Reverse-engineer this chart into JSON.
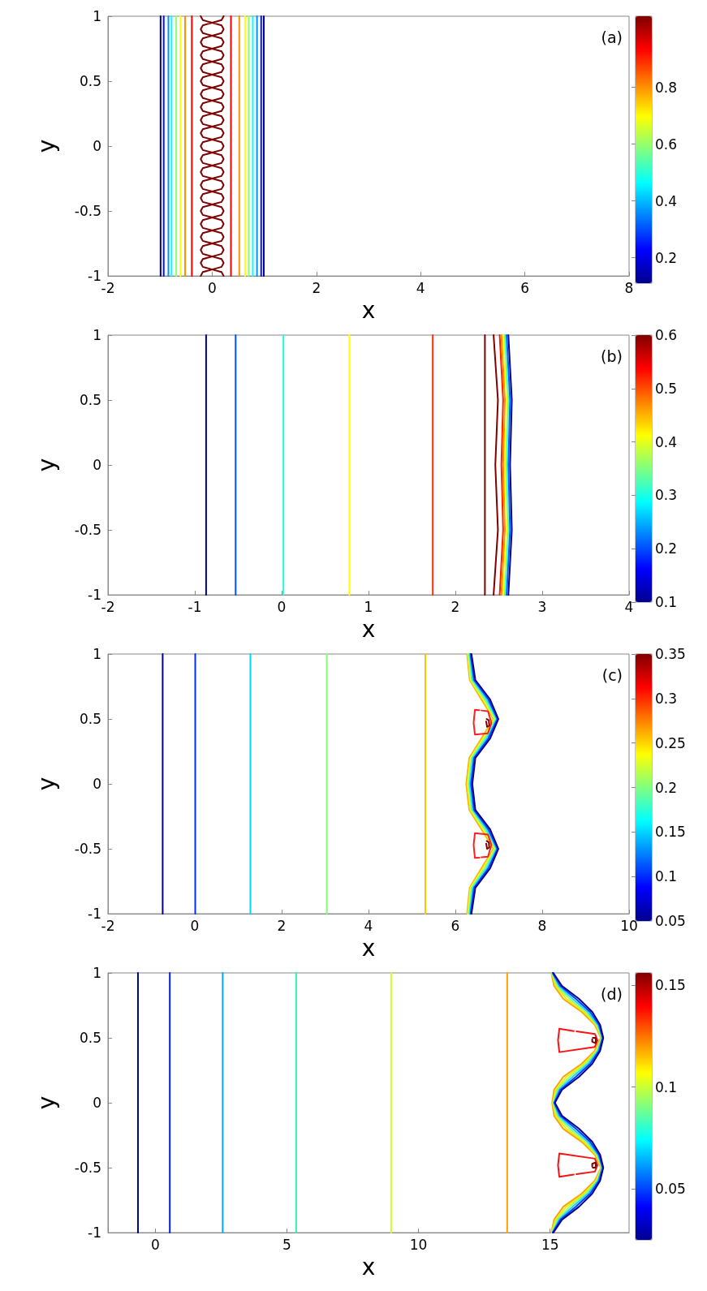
{
  "chart_data": [
    {
      "type": "line",
      "xlabel": "x",
      "ylabel": "y",
      "xlim": [
        -2,
        8
      ],
      "ylim": [
        -1,
        1
      ],
      "xticks": [
        -2,
        0,
        2,
        4,
        6,
        8
      ],
      "yticks": [
        -1,
        -0.5,
        0,
        0.5,
        1
      ],
      "clim": [
        0.11,
        1.05
      ],
      "cticks": [
        0.2,
        0.4,
        0.6,
        0.8
      ],
      "annotations": [
        "(a)"
      ],
      "series": [
        {
          "color": "#00008f",
          "x": [
            -0.99,
            -0.99
          ],
          "values": [
            -1,
            1
          ]
        },
        {
          "color": "#0010ff",
          "x": [
            -0.93,
            -0.93
          ],
          "values": [
            -1,
            1
          ]
        },
        {
          "color": "#0090ff",
          "x": [
            -0.84,
            -0.84
          ],
          "values": [
            -1,
            1
          ]
        },
        {
          "color": "#00ffff",
          "x": [
            -0.78,
            -0.78
          ],
          "values": [
            -1,
            1
          ]
        },
        {
          "color": "#90ff70",
          "x": [
            -0.69,
            -0.69
          ],
          "values": [
            -1,
            1
          ]
        },
        {
          "color": "#ffff00",
          "x": [
            -0.61,
            -0.61
          ],
          "values": [
            -1,
            1
          ]
        },
        {
          "color": "#ff9000",
          "x": [
            -0.52,
            -0.52
          ],
          "values": [
            -1,
            1
          ]
        },
        {
          "color": "#ff0000",
          "x": [
            -0.39,
            -0.39
          ],
          "values": [
            -1,
            1
          ]
        },
        {
          "color": "#ff0000",
          "x": [
            0.36,
            0.36
          ],
          "values": [
            -1,
            1
          ]
        },
        {
          "color": "#ff9000",
          "x": [
            0.52,
            0.52
          ],
          "values": [
            -1,
            1
          ]
        },
        {
          "color": "#ffff00",
          "x": [
            0.63,
            0.63
          ],
          "values": [
            -1,
            1
          ]
        },
        {
          "color": "#90ff70",
          "x": [
            0.7,
            0.7
          ],
          "values": [
            -1,
            1
          ]
        },
        {
          "color": "#00ffff",
          "x": [
            0.78,
            0.78
          ],
          "values": [
            -1,
            1
          ]
        },
        {
          "color": "#0090ff",
          "x": [
            0.86,
            0.86
          ],
          "values": [
            -1,
            1
          ]
        },
        {
          "color": "#0010ff",
          "x": [
            0.94,
            0.94
          ],
          "values": [
            -1,
            1
          ]
        },
        {
          "color": "#00008f",
          "x": [
            0.99,
            0.99
          ],
          "values": [
            -1,
            1
          ]
        },
        {
          "color": "#800000",
          "x": [
            0.22,
            0.18,
            0,
            0.18,
            0.22,
            0.18,
            0,
            0.18,
            0.22,
            0.18,
            0,
            0.18,
            0.22,
            0.18,
            0,
            0.18,
            0.22,
            0.18,
            0,
            0.18,
            0.22,
            0.18,
            0,
            0.18,
            0.22,
            0.18,
            0,
            0.18,
            0.22,
            0.18,
            0,
            0.18,
            0.22,
            0.18,
            0,
            0.18,
            0.22,
            0.18,
            0,
            0.18,
            0.22,
            0.18,
            0,
            0.18,
            0.22,
            0.18,
            0,
            0.18,
            0.22,
            0.18,
            0,
            0.18,
            0.22,
            0.18,
            0,
            0.18,
            0.22,
            0.18,
            0,
            0.18,
            0.22,
            0.18,
            0,
            0.18,
            0.22,
            0.18,
            0,
            0.18,
            0.22,
            0.18,
            0,
            0.18,
            0.22,
            0.18,
            0,
            0.18,
            0.22,
            0.18,
            0,
            0.18,
            0.22
          ],
          "values": [
            -1,
            -0.97,
            -0.95,
            -0.93,
            -0.9,
            -0.87,
            -0.85,
            -0.83,
            -0.8,
            -0.77,
            -0.75,
            -0.73,
            -0.7,
            -0.67,
            -0.65,
            -0.63,
            -0.6,
            -0.57,
            -0.55,
            -0.53,
            -0.5,
            -0.47,
            -0.45,
            -0.43,
            -0.4,
            -0.37,
            -0.35,
            -0.33,
            -0.3,
            -0.27,
            -0.25,
            -0.23,
            -0.2,
            -0.17,
            -0.15,
            -0.13,
            -0.1,
            -0.07,
            -0.05,
            -0.03,
            0,
            0.03,
            0.05,
            0.07,
            0.1,
            0.13,
            0.15,
            0.17,
            0.2,
            0.23,
            0.25,
            0.27,
            0.3,
            0.33,
            0.35,
            0.37,
            0.4,
            0.43,
            0.45,
            0.47,
            0.5,
            0.53,
            0.55,
            0.57,
            0.6,
            0.63,
            0.65,
            0.67,
            0.7,
            0.73,
            0.75,
            0.77,
            0.8,
            0.83,
            0.85,
            0.87,
            0.9,
            0.93,
            0.95,
            0.97,
            1
          ]
        },
        {
          "color": "#800000",
          "x": [
            -0.22,
            -0.18,
            0,
            -0.18,
            -0.22,
            -0.18,
            0,
            -0.18,
            -0.22,
            -0.18,
            0,
            -0.18,
            -0.22,
            -0.18,
            0,
            -0.18,
            -0.22,
            -0.18,
            0,
            -0.18,
            -0.22,
            -0.18,
            0,
            -0.18,
            -0.22,
            -0.18,
            0,
            -0.18,
            -0.22,
            -0.18,
            0,
            -0.18,
            -0.22,
            -0.18,
            0,
            -0.18,
            -0.22,
            -0.18,
            0,
            -0.18,
            -0.22,
            -0.18,
            0,
            -0.18,
            -0.22,
            -0.18,
            0,
            -0.18,
            -0.22,
            -0.18,
            0,
            -0.18,
            -0.22,
            -0.18,
            0,
            -0.18,
            -0.22,
            -0.18,
            0,
            -0.18,
            -0.22,
            -0.18,
            0,
            -0.18,
            -0.22,
            -0.18,
            0,
            -0.18,
            -0.22,
            -0.18,
            0,
            -0.18,
            -0.22,
            -0.18,
            0,
            -0.18,
            -0.22,
            -0.18,
            0,
            -0.18,
            -0.22
          ],
          "values": [
            -1,
            -0.97,
            -0.95,
            -0.93,
            -0.9,
            -0.87,
            -0.85,
            -0.83,
            -0.8,
            -0.77,
            -0.75,
            -0.73,
            -0.7,
            -0.67,
            -0.65,
            -0.63,
            -0.6,
            -0.57,
            -0.55,
            -0.53,
            -0.5,
            -0.47,
            -0.45,
            -0.43,
            -0.4,
            -0.37,
            -0.35,
            -0.33,
            -0.3,
            -0.27,
            -0.25,
            -0.23,
            -0.2,
            -0.17,
            -0.15,
            -0.13,
            -0.1,
            -0.07,
            -0.05,
            -0.03,
            0,
            0.03,
            0.05,
            0.07,
            0.1,
            0.13,
            0.15,
            0.17,
            0.2,
            0.23,
            0.25,
            0.27,
            0.3,
            0.33,
            0.35,
            0.37,
            0.4,
            0.43,
            0.45,
            0.47,
            0.5,
            0.53,
            0.55,
            0.57,
            0.6,
            0.63,
            0.65,
            0.67,
            0.7,
            0.73,
            0.75,
            0.77,
            0.8,
            0.83,
            0.85,
            0.87,
            0.9,
            0.93,
            0.95,
            0.97,
            1
          ]
        }
      ]
    },
    {
      "type": "line",
      "xlabel": "x",
      "ylabel": "y",
      "xlim": [
        -2,
        4
      ],
      "ylim": [
        -1,
        1
      ],
      "xticks": [
        -2,
        -1,
        0,
        1,
        2,
        3,
        4
      ],
      "yticks": [
        -1,
        -0.5,
        0,
        0.5,
        1
      ],
      "clim": [
        0.1,
        0.6
      ],
      "cticks": [
        0.1,
        0.2,
        0.3,
        0.4,
        0.5,
        0.6
      ],
      "annotations": [
        "(b)"
      ],
      "series": [
        {
          "color": "#00008f",
          "x": [
            -0.87,
            -0.87
          ],
          "values": [
            -1,
            1
          ]
        },
        {
          "color": "#0050ff",
          "x": [
            -0.53,
            -0.53
          ],
          "values": [
            -1,
            1
          ]
        },
        {
          "color": "#20ffe0",
          "x": [
            0.02,
            0.02
          ],
          "values": [
            -1,
            1
          ]
        },
        {
          "color": "#ffff00",
          "x": [
            0.78,
            0.78
          ],
          "values": [
            -1,
            1
          ]
        },
        {
          "color": "#ff3000",
          "x": [
            1.74,
            1.74
          ],
          "values": [
            -1,
            1
          ]
        },
        {
          "color": "#800000",
          "x": [
            2.34,
            2.34
          ],
          "values": [
            -1,
            1
          ]
        },
        {
          "color": "#800000",
          "x": [
            2.44,
            2.49,
            2.46,
            2.49,
            2.44
          ],
          "values": [
            -1,
            -0.5,
            0,
            0.5,
            1
          ]
        },
        {
          "color": "#ff2000",
          "x": [
            2.51,
            2.55,
            2.53,
            2.55,
            2.51
          ],
          "values": [
            -1,
            -0.5,
            0,
            0.5,
            1
          ]
        },
        {
          "color": "#ff9000",
          "x": [
            2.53,
            2.57,
            2.55,
            2.57,
            2.53
          ],
          "values": [
            -1,
            -0.5,
            0,
            0.5,
            1
          ]
        },
        {
          "color": "#ffff00",
          "x": [
            2.55,
            2.59,
            2.57,
            2.59,
            2.55
          ],
          "values": [
            -1,
            -0.5,
            0,
            0.5,
            1
          ]
        },
        {
          "color": "#40ffc0",
          "x": [
            2.57,
            2.61,
            2.59,
            2.61,
            2.57
          ],
          "values": [
            -1,
            -0.5,
            0,
            0.5,
            1
          ]
        },
        {
          "color": "#0060ff",
          "x": [
            2.59,
            2.63,
            2.61,
            2.63,
            2.59
          ],
          "values": [
            -1,
            -0.5,
            0,
            0.5,
            1
          ]
        },
        {
          "color": "#00008f",
          "x": [
            2.61,
            2.65,
            2.63,
            2.65,
            2.61
          ],
          "values": [
            -1,
            -0.5,
            0,
            0.5,
            1
          ]
        }
      ]
    },
    {
      "type": "line",
      "xlabel": "x",
      "ylabel": "y",
      "xlim": [
        -2,
        10
      ],
      "ylim": [
        -1,
        1
      ],
      "xticks": [
        -2,
        0,
        2,
        4,
        6,
        8,
        10
      ],
      "yticks": [
        -1,
        -0.5,
        0,
        0.5,
        1
      ],
      "clim": [
        0.05,
        0.35
      ],
      "cticks": [
        0.05,
        0.1,
        0.15,
        0.2,
        0.25,
        0.3,
        0.35
      ],
      "annotations": [
        "(c)"
      ],
      "series": [
        {
          "color": "#000090",
          "x": [
            -0.74,
            -0.74
          ],
          "values": [
            -1,
            1
          ]
        },
        {
          "color": "#0030ff",
          "x": [
            0.01,
            0.01
          ],
          "values": [
            -1,
            1
          ]
        },
        {
          "color": "#00d8ff",
          "x": [
            1.28,
            1.28
          ],
          "values": [
            -1,
            1
          ]
        },
        {
          "color": "#80ff70",
          "x": [
            3.04,
            3.04
          ],
          "values": [
            -1,
            1
          ]
        },
        {
          "color": "#ffc000",
          "x": [
            5.31,
            5.31
          ],
          "values": [
            -1,
            1
          ]
        },
        {
          "color": "#ffb000",
          "x": [
            6.27,
            6.33,
            6.6,
            6.88,
            6.6,
            6.32,
            6.25,
            6.32,
            6.6,
            6.88,
            6.6,
            6.33,
            6.27
          ],
          "values": [
            -1,
            -0.8,
            -0.65,
            -0.5,
            -0.35,
            -0.2,
            0,
            0.2,
            0.35,
            0.5,
            0.65,
            0.8,
            1
          ]
        },
        {
          "color": "#e0ff20",
          "x": [
            6.29,
            6.35,
            6.64,
            6.9,
            6.64,
            6.35,
            6.28,
            6.35,
            6.64,
            6.9,
            6.64,
            6.35,
            6.29
          ],
          "values": [
            -1,
            -0.8,
            -0.65,
            -0.5,
            -0.35,
            -0.2,
            0,
            0.2,
            0.35,
            0.5,
            0.65,
            0.8,
            1
          ]
        },
        {
          "color": "#80ff80",
          "x": [
            6.31,
            6.38,
            6.68,
            6.93,
            6.68,
            6.38,
            6.31,
            6.38,
            6.68,
            6.93,
            6.68,
            6.38,
            6.31
          ],
          "values": [
            -1,
            -0.8,
            -0.65,
            -0.5,
            -0.35,
            -0.2,
            0,
            0.2,
            0.35,
            0.5,
            0.65,
            0.8,
            1
          ]
        },
        {
          "color": "#20e0ff",
          "x": [
            6.33,
            6.4,
            6.72,
            6.95,
            6.72,
            6.4,
            6.33,
            6.4,
            6.72,
            6.95,
            6.72,
            6.4,
            6.33
          ],
          "values": [
            -1,
            -0.8,
            -0.65,
            -0.5,
            -0.35,
            -0.2,
            0,
            0.2,
            0.35,
            0.5,
            0.65,
            0.8,
            1
          ]
        },
        {
          "color": "#0040ff",
          "x": [
            6.35,
            6.43,
            6.76,
            6.97,
            6.76,
            6.43,
            6.36,
            6.43,
            6.76,
            6.97,
            6.76,
            6.43,
            6.35
          ],
          "values": [
            -1,
            -0.8,
            -0.65,
            -0.5,
            -0.35,
            -0.2,
            0,
            0.2,
            0.35,
            0.5,
            0.65,
            0.8,
            1
          ]
        },
        {
          "color": "#000090",
          "x": [
            6.37,
            6.46,
            6.8,
            6.99,
            6.8,
            6.46,
            6.39,
            6.46,
            6.8,
            6.99,
            6.8,
            6.46,
            6.37
          ],
          "values": [
            -1,
            -0.8,
            -0.65,
            -0.5,
            -0.35,
            -0.2,
            0,
            0.2,
            0.35,
            0.5,
            0.65,
            0.8,
            1
          ]
        },
        {
          "color": "#ff2020",
          "x": [
            6.6,
            6.75,
            6.83,
            6.75,
            6.45,
            6.42,
            6.45,
            6.55
          ],
          "values": [
            0.565,
            0.56,
            0.47,
            0.39,
            0.38,
            0.47,
            0.57,
            0.568
          ]
        },
        {
          "color": "#ff2020",
          "x": [
            6.6,
            6.75,
            6.83,
            6.75,
            6.45,
            6.42,
            6.45,
            6.55
          ],
          "values": [
            -0.565,
            -0.56,
            -0.47,
            -0.39,
            -0.38,
            -0.47,
            -0.57,
            -0.568
          ]
        },
        {
          "color": "#800000",
          "x": [
            6.72,
            6.77,
            6.78,
            6.73,
            6.71
          ],
          "values": [
            0.5,
            0.49,
            0.45,
            0.44,
            0.48
          ]
        },
        {
          "color": "#7a0000",
          "x": [
            6.72,
            6.77,
            6.78,
            6.73,
            6.71
          ],
          "values": [
            -0.44,
            -0.45,
            -0.49,
            -0.5,
            -0.46
          ]
        }
      ]
    },
    {
      "type": "line",
      "xlabel": "x",
      "ylabel": "y",
      "xlim": [
        -1.8,
        18
      ],
      "ylim": [
        -1,
        1
      ],
      "xticks": [
        0,
        5,
        10,
        15
      ],
      "yticks": [
        -1,
        -0.5,
        0,
        0.5,
        1
      ],
      "clim": [
        0.025,
        0.156
      ],
      "cticks": [
        0.05,
        0.1,
        0.15
      ],
      "annotations": [
        "(d)"
      ],
      "series": [
        {
          "color": "#00008f",
          "x": [
            -0.66,
            -0.66
          ],
          "values": [
            -1,
            1
          ]
        },
        {
          "color": "#0020e0",
          "x": [
            0.55,
            0.55
          ],
          "values": [
            -1,
            1
          ]
        },
        {
          "color": "#00a8ff",
          "x": [
            2.56,
            2.56
          ],
          "values": [
            -1,
            1
          ]
        },
        {
          "color": "#30f0b0",
          "x": [
            5.35,
            5.35
          ],
          "values": [
            -1,
            1
          ]
        },
        {
          "color": "#d0ff20",
          "x": [
            8.96,
            8.96
          ],
          "values": [
            -1,
            1
          ]
        },
        {
          "color": "#ffa000",
          "x": [
            13.37,
            13.37
          ],
          "values": [
            -1,
            1
          ]
        },
        {
          "color": "#ffa000",
          "x": [
            15.05,
            15.15,
            15.5,
            16.2,
            16.7,
            16.93,
            16.7,
            16.2,
            15.5,
            15.15,
            15.08,
            15.15,
            15.5,
            16.2,
            16.7,
            16.93,
            16.7,
            16.2,
            15.5,
            15.15,
            15.05
          ],
          "values": [
            -1,
            -0.9,
            -0.8,
            -0.7,
            -0.6,
            -0.5,
            -0.4,
            -0.3,
            -0.2,
            -0.1,
            0,
            0.1,
            0.2,
            0.3,
            0.4,
            0.5,
            0.6,
            0.7,
            0.8,
            0.9,
            1
          ]
        },
        {
          "color": "#e8f000",
          "x": [
            15.06,
            15.21,
            15.62,
            16.28,
            16.74,
            16.95,
            16.74,
            16.28,
            15.62,
            15.21,
            15.1,
            15.21,
            15.62,
            16.28,
            16.74,
            16.95,
            16.74,
            16.28,
            15.62,
            15.21,
            15.06
          ],
          "values": [
            -1,
            -0.9,
            -0.8,
            -0.7,
            -0.6,
            -0.5,
            -0.4,
            -0.3,
            -0.2,
            -0.1,
            0,
            0.1,
            0.2,
            0.3,
            0.4,
            0.5,
            0.6,
            0.7,
            0.8,
            0.9,
            1
          ]
        },
        {
          "color": "#90ff70",
          "x": [
            15.07,
            15.27,
            15.74,
            16.36,
            16.78,
            16.97,
            16.78,
            16.36,
            15.74,
            15.27,
            15.12,
            15.27,
            15.74,
            16.36,
            16.78,
            16.97,
            16.78,
            16.36,
            15.74,
            15.27,
            15.07
          ],
          "values": [
            -1,
            -0.9,
            -0.8,
            -0.7,
            -0.6,
            -0.5,
            -0.4,
            -0.3,
            -0.2,
            -0.1,
            0,
            0.1,
            0.2,
            0.3,
            0.4,
            0.5,
            0.6,
            0.7,
            0.8,
            0.9,
            1
          ]
        },
        {
          "color": "#20d0ff",
          "x": [
            15.09,
            15.33,
            15.86,
            16.44,
            16.82,
            16.98,
            16.82,
            16.44,
            15.86,
            15.33,
            15.14,
            15.33,
            15.86,
            16.44,
            16.82,
            16.98,
            16.82,
            16.44,
            15.86,
            15.33,
            15.09
          ],
          "values": [
            -1,
            -0.9,
            -0.8,
            -0.7,
            -0.6,
            -0.5,
            -0.4,
            -0.3,
            -0.2,
            -0.1,
            0,
            0.1,
            0.2,
            0.3,
            0.4,
            0.5,
            0.6,
            0.7,
            0.8,
            0.9,
            1
          ]
        },
        {
          "color": "#0040ff",
          "x": [
            15.1,
            15.39,
            15.98,
            16.52,
            16.86,
            17,
            16.86,
            16.52,
            15.98,
            15.39,
            15.16,
            15.39,
            15.98,
            16.52,
            16.86,
            17,
            16.86,
            16.52,
            15.98,
            15.39,
            15.1
          ],
          "values": [
            -1,
            -0.9,
            -0.8,
            -0.7,
            -0.6,
            -0.5,
            -0.4,
            -0.3,
            -0.2,
            -0.1,
            0,
            0.1,
            0.2,
            0.3,
            0.4,
            0.5,
            0.6,
            0.7,
            0.8,
            0.9,
            1
          ]
        },
        {
          "color": "#00008f",
          "x": [
            15.12,
            15.45,
            16.1,
            16.6,
            16.9,
            17.02,
            16.9,
            16.6,
            16.1,
            15.45,
            15.18,
            15.45,
            16.1,
            16.6,
            16.9,
            17.02,
            16.9,
            16.6,
            16.1,
            15.45,
            15.12
          ],
          "values": [
            -1,
            -0.9,
            -0.8,
            -0.7,
            -0.6,
            -0.5,
            -0.4,
            -0.3,
            -0.2,
            -0.1,
            0,
            0.1,
            0.2,
            0.3,
            0.4,
            0.5,
            0.6,
            0.7,
            0.8,
            0.9,
            1
          ]
        },
        {
          "color": "#ff1010",
          "x": [
            16,
            16.7,
            16.8,
            16.7,
            15.35,
            15.3,
            15.35,
            15.9
          ],
          "values": [
            0.55,
            0.53,
            0.48,
            0.43,
            0.39,
            0.48,
            0.57,
            0.552
          ]
        },
        {
          "color": "#ff1010",
          "x": [
            16,
            16.7,
            16.8,
            16.7,
            15.35,
            15.3,
            15.35,
            15.9
          ],
          "values": [
            -0.55,
            -0.53,
            -0.48,
            -0.43,
            -0.39,
            -0.48,
            -0.57,
            -0.552
          ]
        },
        {
          "color": "#800000",
          "x": [
            16.62,
            16.72,
            16.74,
            16.72,
            16.6,
            16.6
          ],
          "values": [
            0.5,
            0.5,
            0.48,
            0.46,
            0.47,
            0.49
          ]
        },
        {
          "color": "#7a0000",
          "x": [
            16.62,
            16.72,
            16.74,
            16.72,
            16.6,
            16.6
          ],
          "values": [
            -0.5,
            -0.5,
            -0.48,
            -0.46,
            -0.47,
            -0.49
          ]
        }
      ]
    }
  ]
}
